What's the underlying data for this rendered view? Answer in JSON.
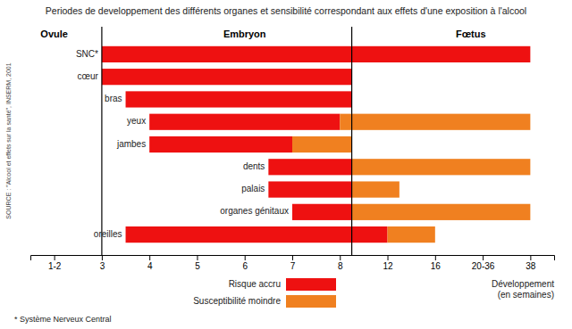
{
  "chart_data": {
    "type": "bar",
    "orientation": "horizontal",
    "title": "Periodes de developpement  des différents organes et sensibilité correspondant aux effets d'une exposition à l'alcool",
    "categories": [
      "SNC*",
      "cœur",
      "bras",
      "yeux",
      "jambes",
      "dents",
      "palais",
      "organes génitaux",
      "oreilles"
    ],
    "series": [
      {
        "name": "Risque accru",
        "color": "#EE1111",
        "values": [
          [
            3,
            38
          ],
          [
            3,
            9
          ],
          [
            3.5,
            9
          ],
          [
            4,
            8
          ],
          [
            4,
            7
          ],
          [
            6.5,
            9
          ],
          [
            6.5,
            9
          ],
          [
            7,
            9
          ],
          [
            3.5,
            12
          ]
        ]
      },
      {
        "name": "Susceptibilité moindre",
        "color": "#F08020",
        "values": [
          null,
          null,
          null,
          [
            8,
            38
          ],
          [
            7,
            9
          ],
          [
            9,
            38
          ],
          [
            9,
            13
          ],
          [
            9,
            38
          ],
          [
            12,
            16
          ]
        ]
      }
    ],
    "xlim": [
      0.75,
      43
    ],
    "xticks": [
      {
        "value": 1.5,
        "label": "1-2"
      },
      3,
      4,
      5,
      6,
      7,
      8,
      12,
      16,
      {
        "value": 28,
        "label": "20-36"
      },
      38
    ],
    "x_label": "Développement\n(en semaines)",
    "reference_lines": [
      3,
      9
    ],
    "annotations": [
      {
        "text": "Ovule",
        "x": 1.5
      },
      {
        "text": "Embryon",
        "x": 6
      },
      {
        "text": "Fœtus",
        "x": 25
      }
    ],
    "footnote": "* Système Nerveux Central",
    "source": "SOURCE : \"Alcool et effets sur la santé\", INSERM, 2001",
    "legend": "bottom",
    "grid": false
  }
}
